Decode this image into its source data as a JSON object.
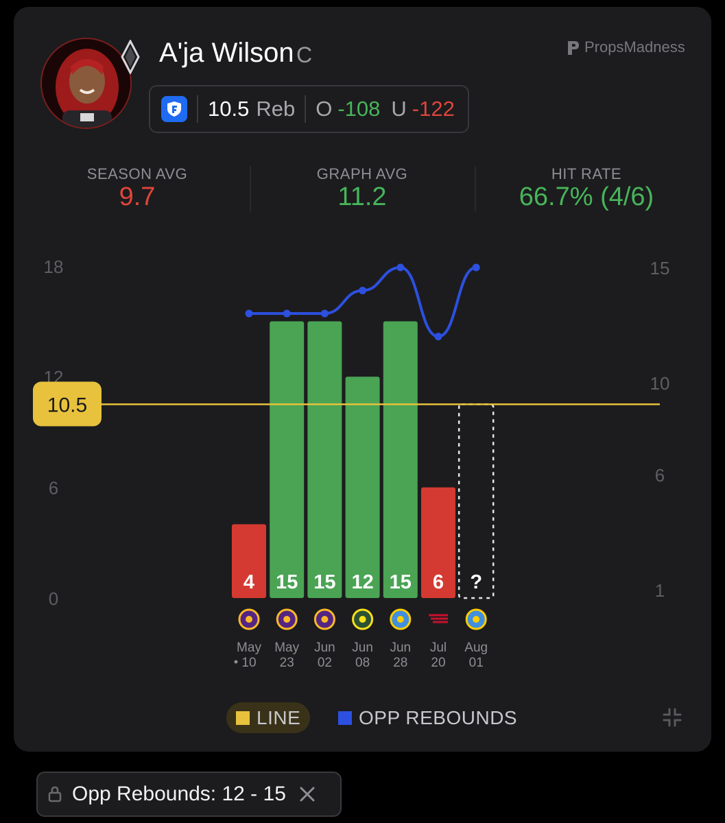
{
  "player": {
    "name": "A'ja Wilson",
    "position": "C"
  },
  "brand": {
    "name": "PropsMadness"
  },
  "prop": {
    "line": "10.5",
    "stat": "Reb",
    "over_label": "O",
    "over_odds": "-108",
    "under_label": "U",
    "under_odds": "-122",
    "book_icon": "fanduel-shield-icon"
  },
  "stats": {
    "season_avg_label": "SEASON AVG",
    "season_avg_value": "9.7",
    "graph_avg_label": "GRAPH AVG",
    "graph_avg_value": "11.2",
    "hit_rate_label": "HIT RATE",
    "hit_rate_value": "66.7% (4/6)"
  },
  "legend": {
    "line_label": "LINE",
    "opp_label": "OPP REBOUNDS"
  },
  "filter": {
    "label": "Opp Rebounds: 12 - 15"
  },
  "colors": {
    "hit": "#4aa454",
    "miss": "#d43a31",
    "line": "#e8c23d",
    "opp_line": "#2d50e0",
    "red_text": "#e0453b",
    "green_text": "#47b55a"
  },
  "chart_data": {
    "type": "bar",
    "categories": [
      "May 10",
      "May 23",
      "Jun 02",
      "Jun 08",
      "Jun 28",
      "Jul 20",
      "Aug 01"
    ],
    "category_top": [
      "May",
      "May",
      "Jun",
      "Jun",
      "Jun",
      "Jul",
      "Aug"
    ],
    "category_bottom": [
      "10",
      "23",
      "02",
      "08",
      "28",
      "20",
      "01"
    ],
    "opponents": [
      "sparks",
      "sparks",
      "sparks",
      "storm",
      "sky",
      "fever",
      "sky"
    ],
    "values": [
      4,
      15,
      15,
      12,
      15,
      6,
      null
    ],
    "value_labels": [
      "4",
      "15",
      "15",
      "12",
      "15",
      "6",
      "?"
    ],
    "line_value": 10.5,
    "line_label": "10.5",
    "y_left": {
      "ticks": [
        0,
        6,
        12,
        18
      ],
      "range": [
        0,
        18
      ]
    },
    "y_right": {
      "ticks": [
        1,
        6,
        10,
        15
      ],
      "range": [
        1,
        15
      ]
    },
    "series": [
      {
        "name": "OPP REBOUNDS",
        "axis": "right",
        "values": [
          13,
          13,
          13,
          14,
          15,
          12,
          15
        ]
      }
    ]
  }
}
